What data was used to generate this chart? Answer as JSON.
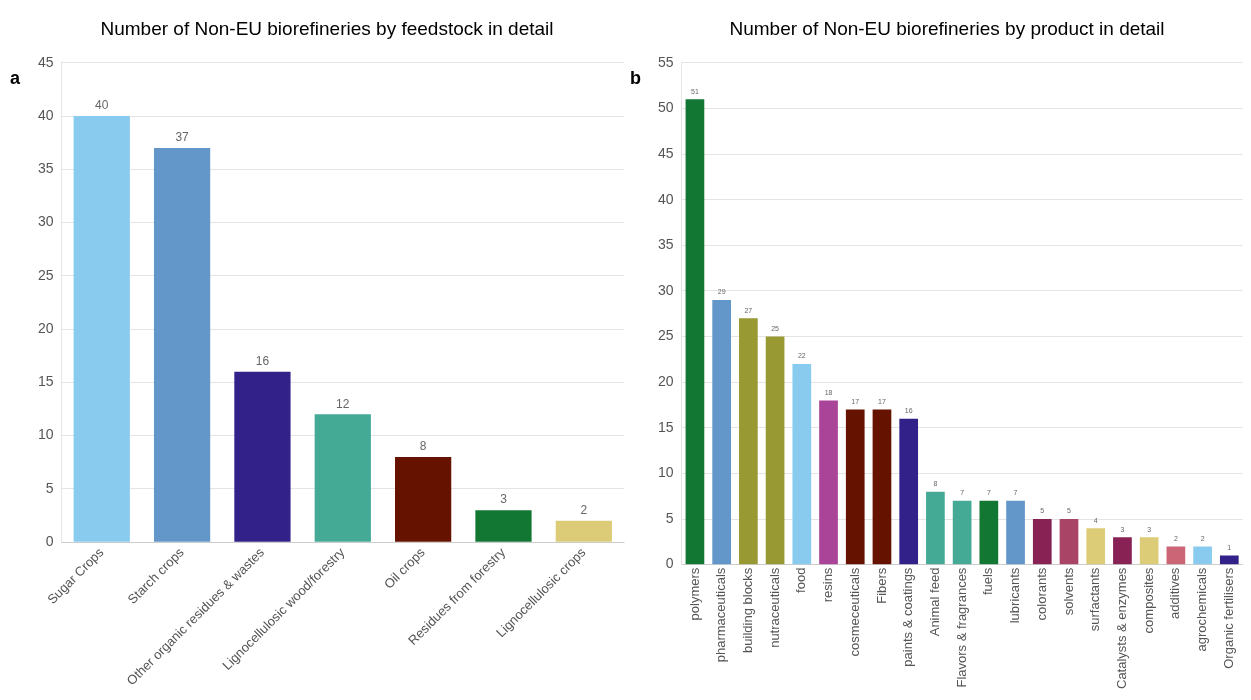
{
  "chart_data": [
    {
      "type": "bar",
      "title": "Number of Non-EU biorefineries by feedstock in detail",
      "annotations": [
        "a"
      ],
      "categories": [
        "Sugar Crops",
        "Starch crops",
        "Other organic residues & wastes",
        "Lignocellulosic wood/forestry",
        "Oil crops",
        "Residues from forestry",
        "Lignocellulosic crops"
      ],
      "values": [
        40,
        37,
        16,
        12,
        8,
        3,
        2
      ],
      "colors": [
        "#89cbee",
        "#6497c9",
        "#33218a",
        "#44aa96",
        "#661200",
        "#127733",
        "#ddcc77"
      ],
      "ylim": [
        0,
        45
      ],
      "yticks": [
        0,
        5,
        10,
        15,
        20,
        25,
        30,
        35,
        40,
        45
      ],
      "grid": "y",
      "data_labels": true,
      "legend": false
    },
    {
      "type": "bar",
      "title": "Number of Non-EU biorefineries by product in detail",
      "annotations": [
        "b"
      ],
      "categories": [
        "polymers",
        "pharmaceuticals",
        "building blocks",
        "nutraceuticals",
        "food",
        "resins",
        "cosmeceuticals",
        "Fibers",
        "paints & coatings",
        "Animal feed",
        "Flavors & fragrances",
        "fuels",
        "lubricants",
        "colorants",
        "solvents",
        "surfactants",
        "Catalysts & enzymes",
        "composites",
        "additives",
        "agrochemicals",
        "Organic fertilisers"
      ],
      "values": [
        51,
        29,
        27,
        25,
        22,
        18,
        17,
        17,
        16,
        8,
        7,
        7,
        7,
        5,
        5,
        4,
        3,
        3,
        2,
        2,
        1
      ],
      "colors": [
        "#127733",
        "#6497c9",
        "#999933",
        "#999933",
        "#89cbee",
        "#aa4499",
        "#661200",
        "#661200",
        "#33218a",
        "#44aa96",
        "#44aa96",
        "#127733",
        "#6497c9",
        "#882255",
        "#aa4466",
        "#ddcc77",
        "#882255",
        "#ddcc77",
        "#cc6677",
        "#89cbee",
        "#33218a"
      ],
      "ylim": [
        0,
        55
      ],
      "yticks": [
        0,
        5,
        10,
        15,
        20,
        25,
        30,
        35,
        40,
        45,
        50,
        55
      ],
      "grid": "y",
      "data_labels": true,
      "legend": false
    }
  ]
}
